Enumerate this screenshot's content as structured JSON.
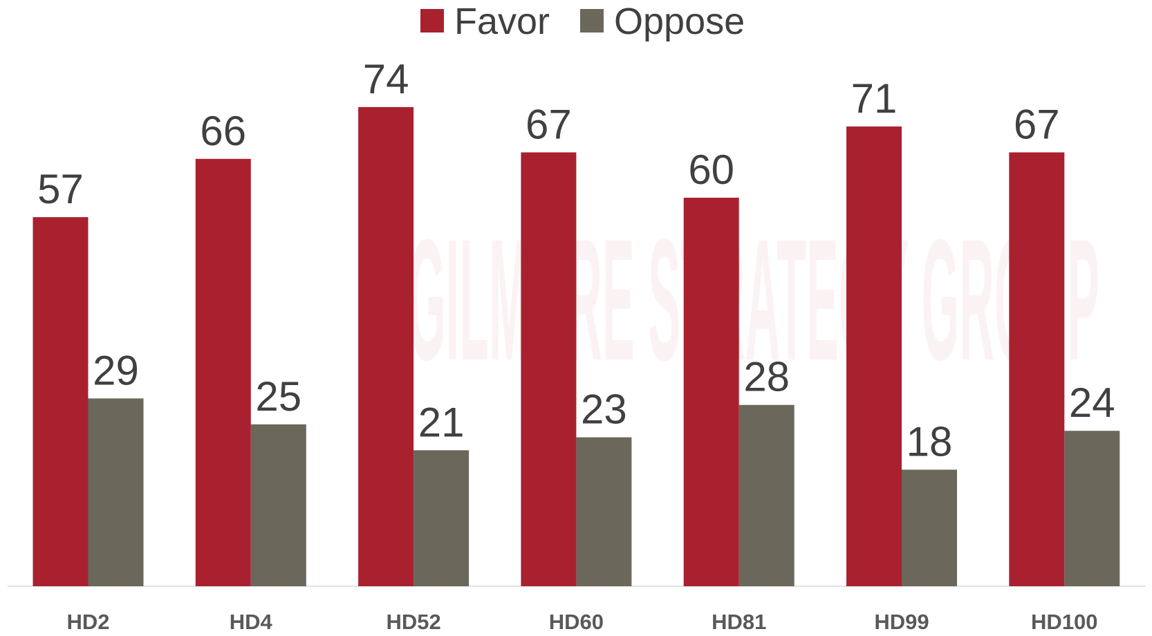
{
  "chart_data": {
    "type": "bar",
    "watermark": "GILMORE STRATEGY GROUP",
    "categories": [
      "HD2",
      "HD4",
      "HD52",
      "HD60",
      "HD81",
      "HD99",
      "HD100"
    ],
    "series": [
      {
        "name": "Favor",
        "color": "#a9212f",
        "values": [
          57,
          66,
          74,
          67,
          60,
          71,
          67
        ]
      },
      {
        "name": "Oppose",
        "color": "#6b675b",
        "values": [
          29,
          25,
          21,
          23,
          28,
          18,
          24
        ]
      }
    ],
    "ylim": [
      0,
      90
    ],
    "legend": "top",
    "data_labels": true
  }
}
